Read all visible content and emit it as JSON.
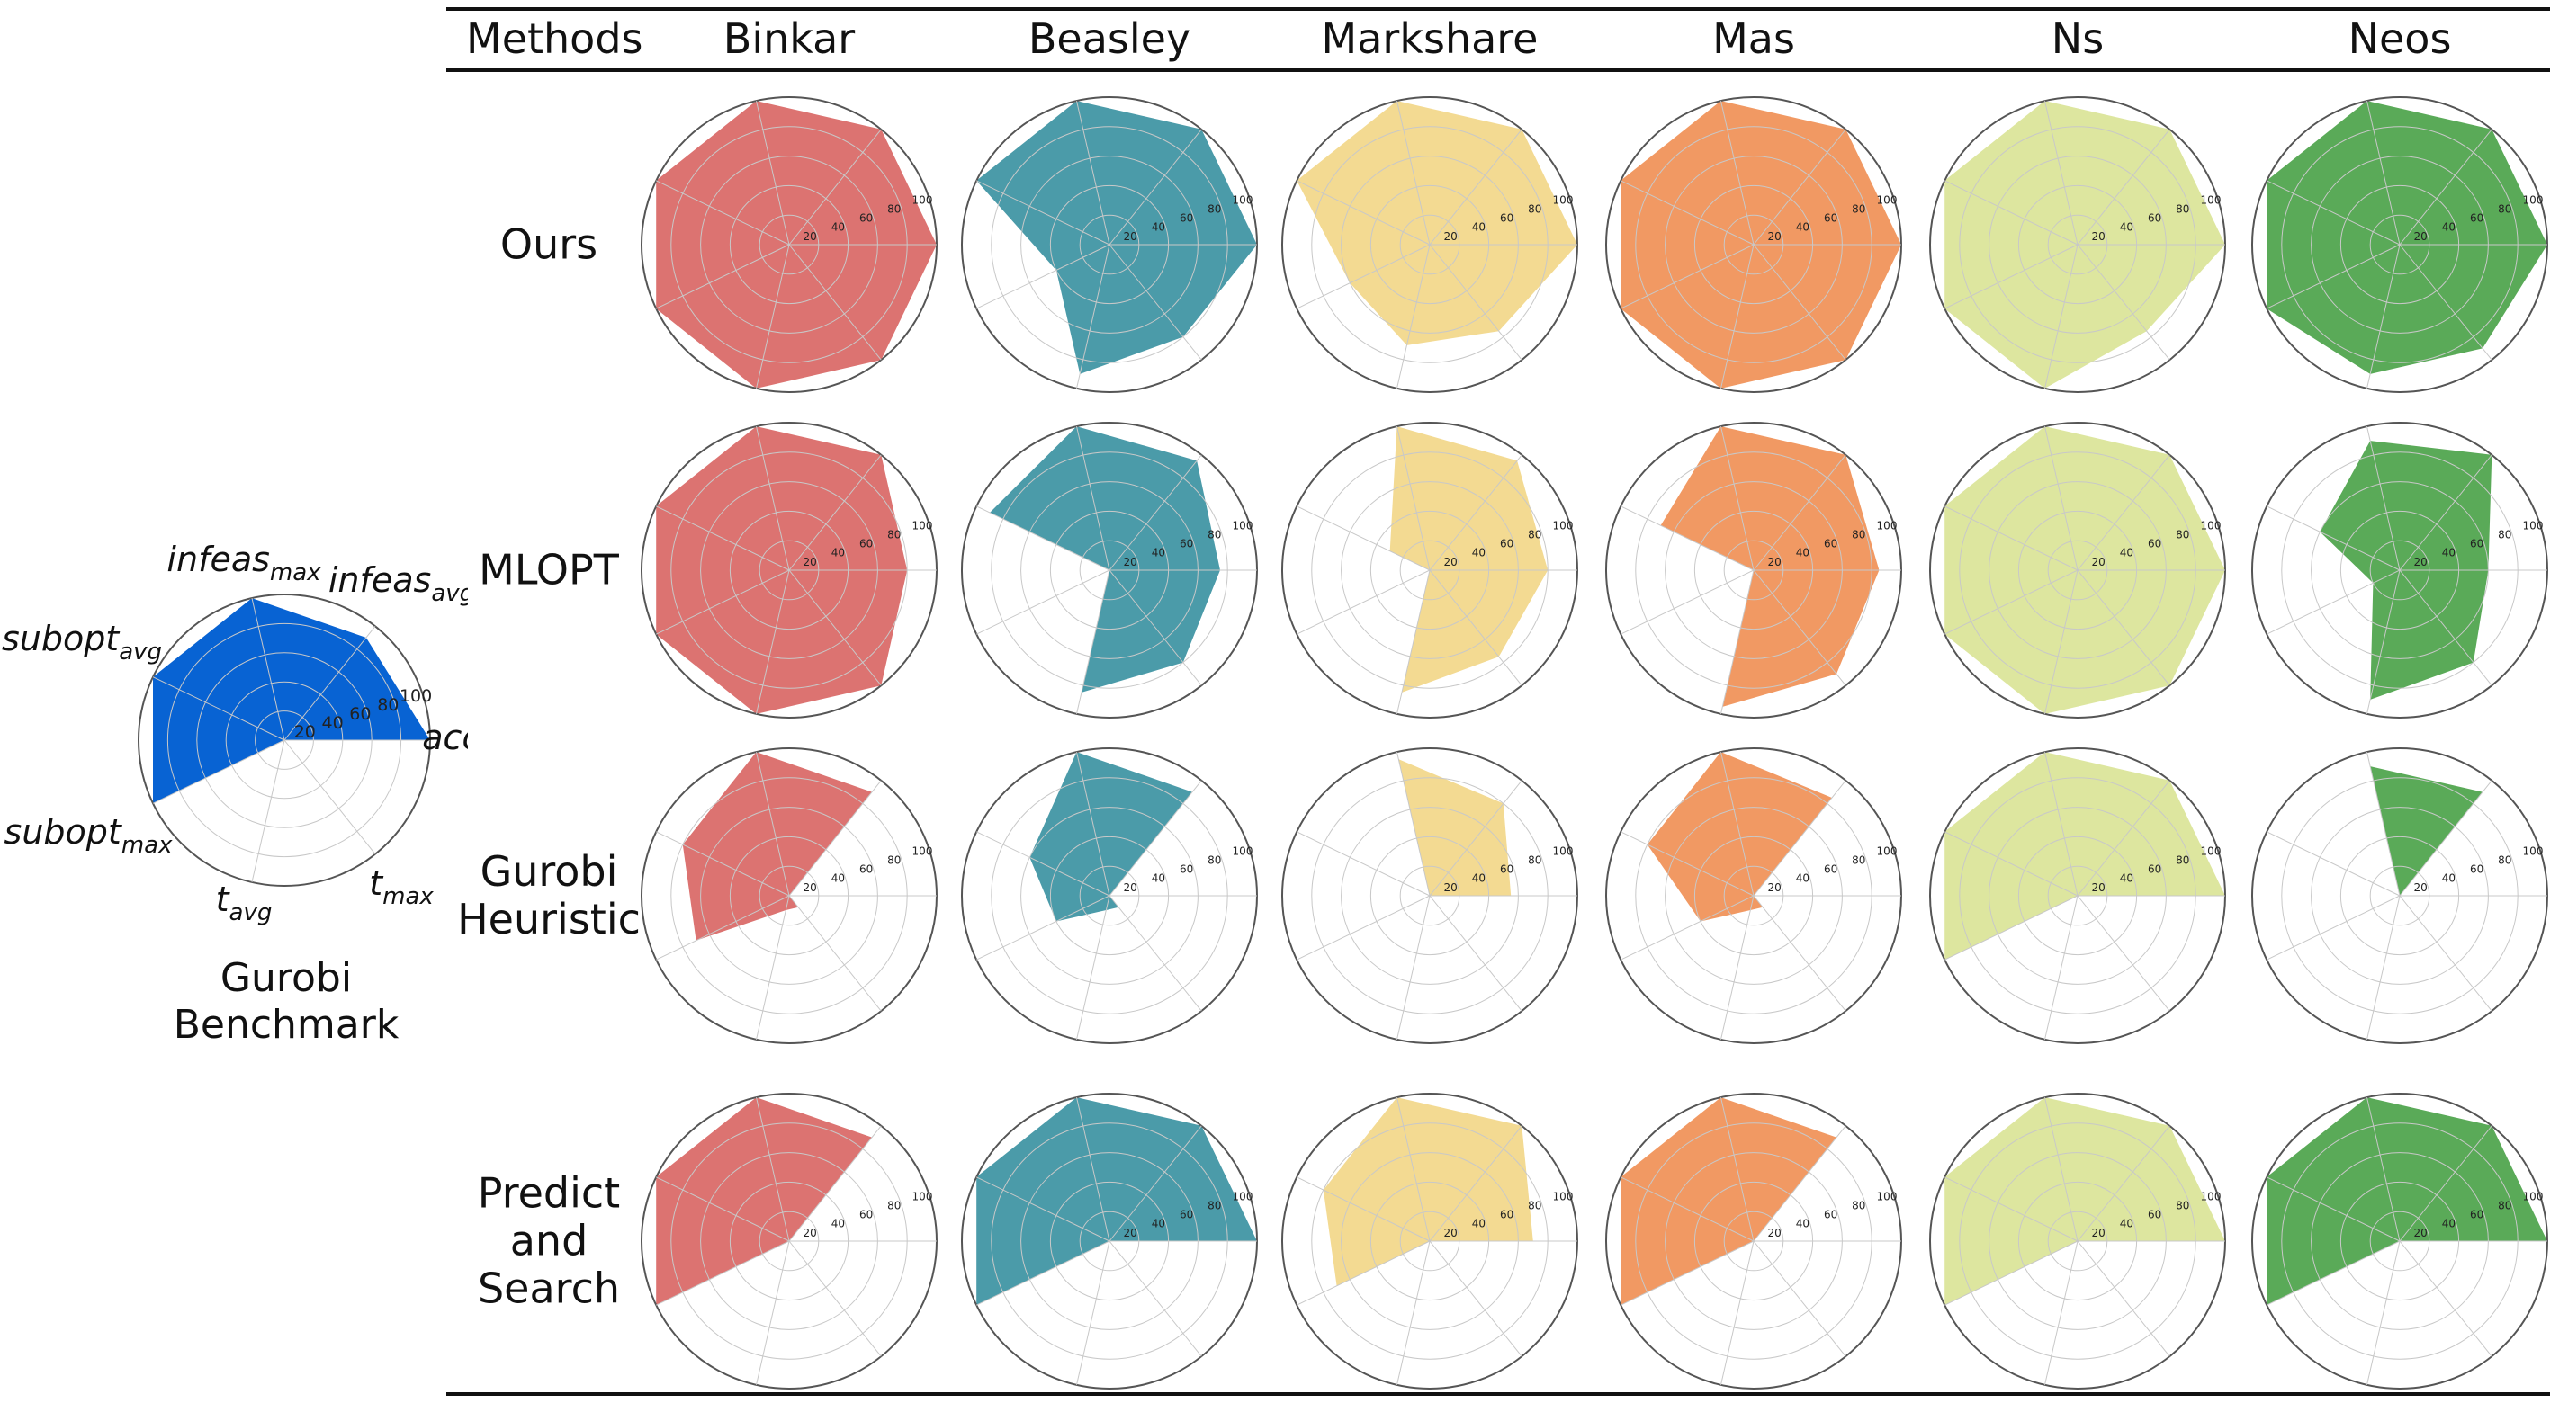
{
  "header": {
    "methods_label": "Methods",
    "datasets": [
      "Binkar",
      "Beasley",
      "Markshare",
      "Mas",
      "Ns",
      "Neos"
    ]
  },
  "rows": [
    {
      "label_lines": [
        "Ours"
      ]
    },
    {
      "label_lines": [
        "MLOPT"
      ]
    },
    {
      "label_lines": [
        "Gurobi",
        "Heuristic"
      ]
    },
    {
      "label_lines": [
        "Predict",
        "and",
        "Search"
      ]
    }
  ],
  "benchmark": {
    "title_lines": [
      "Gurobi",
      "Benchmark"
    ],
    "color": "#0863d3",
    "values": [
      100,
      90,
      100,
      100,
      100,
      0,
      0
    ],
    "axis_labels": [
      {
        "base": "accuracy",
        "sub": ""
      },
      {
        "base": "infeas",
        "sub": "avg"
      },
      {
        "base": "infeas",
        "sub": "max"
      },
      {
        "base": "subopt",
        "sub": "avg"
      },
      {
        "base": "subopt",
        "sub": "max"
      },
      {
        "base": "t",
        "sub": "avg"
      },
      {
        "base": "t",
        "sub": "max"
      }
    ]
  },
  "chart_data": {
    "type": "radar",
    "title": "",
    "axes": [
      "accuracy",
      "infeas_avg",
      "infeas_max",
      "subopt_avg",
      "subopt_max",
      "t_avg",
      "t_max"
    ],
    "rlim": [
      0,
      100
    ],
    "ticks": [
      "20",
      "40",
      "60",
      "80",
      "100"
    ],
    "series_colors": {
      "Binkar": "#dc7371",
      "Beasley": "#4b9ba9",
      "Markshare": "#f3da92",
      "Mas": "#f19963",
      "Ns": "#dde69f",
      "Neos": "#5aaa58"
    },
    "series": [
      {
        "method": "Ours",
        "dataset": "Binkar",
        "values": [
          100,
          100,
          100,
          100,
          100,
          100,
          100
        ]
      },
      {
        "method": "Ours",
        "dataset": "Beasley",
        "values": [
          100,
          100,
          100,
          100,
          40,
          90,
          80
        ]
      },
      {
        "method": "Ours",
        "dataset": "Markshare",
        "values": [
          100,
          100,
          100,
          100,
          60,
          70,
          75
        ]
      },
      {
        "method": "Ours",
        "dataset": "Mas",
        "values": [
          100,
          100,
          100,
          100,
          100,
          100,
          100
        ]
      },
      {
        "method": "Ours",
        "dataset": "Ns",
        "values": [
          100,
          100,
          100,
          100,
          100,
          100,
          75
        ]
      },
      {
        "method": "Ours",
        "dataset": "Neos",
        "values": [
          100,
          100,
          100,
          100,
          100,
          90,
          90
        ]
      },
      {
        "method": "MLOPT",
        "dataset": "Binkar",
        "values": [
          80,
          100,
          100,
          100,
          100,
          100,
          100
        ]
      },
      {
        "method": "MLOPT",
        "dataset": "Beasley",
        "values": [
          75,
          95,
          100,
          90,
          0,
          85,
          80
        ]
      },
      {
        "method": "MLOPT",
        "dataset": "Markshare",
        "values": [
          80,
          95,
          100,
          30,
          0,
          85,
          75
        ]
      },
      {
        "method": "MLOPT",
        "dataset": "Mas",
        "values": [
          85,
          100,
          100,
          70,
          0,
          95,
          90
        ]
      },
      {
        "method": "MLOPT",
        "dataset": "Ns",
        "values": [
          100,
          100,
          100,
          100,
          100,
          100,
          100
        ]
      },
      {
        "method": "MLOPT",
        "dataset": "Neos",
        "values": [
          60,
          100,
          90,
          60,
          20,
          90,
          80
        ]
      },
      {
        "method": "Gurobi Heuristic",
        "dataset": "Binkar",
        "values": [
          0,
          90,
          100,
          80,
          70,
          10,
          10
        ]
      },
      {
        "method": "Gurobi Heuristic",
        "dataset": "Beasley",
        "values": [
          0,
          90,
          100,
          60,
          40,
          10,
          10
        ]
      },
      {
        "method": "Gurobi Heuristic",
        "dataset": "Markshare",
        "values": [
          55,
          80,
          95,
          0,
          0,
          0,
          0
        ]
      },
      {
        "method": "Gurobi Heuristic",
        "dataset": "Mas",
        "values": [
          0,
          85,
          100,
          80,
          40,
          10,
          10
        ]
      },
      {
        "method": "Gurobi Heuristic",
        "dataset": "Ns",
        "values": [
          100,
          100,
          100,
          100,
          100,
          0,
          0
        ]
      },
      {
        "method": "Gurobi Heuristic",
        "dataset": "Neos",
        "values": [
          0,
          90,
          90,
          0,
          0,
          0,
          0
        ]
      },
      {
        "method": "Predict and Search",
        "dataset": "Binkar",
        "values": [
          0,
          90,
          100,
          100,
          100,
          0,
          0
        ]
      },
      {
        "method": "Predict and Search",
        "dataset": "Beasley",
        "values": [
          100,
          100,
          100,
          100,
          100,
          0,
          0
        ]
      },
      {
        "method": "Predict and Search",
        "dataset": "Markshare",
        "values": [
          70,
          100,
          100,
          80,
          70,
          0,
          0
        ]
      },
      {
        "method": "Predict and Search",
        "dataset": "Mas",
        "values": [
          0,
          90,
          100,
          100,
          100,
          0,
          0
        ]
      },
      {
        "method": "Predict and Search",
        "dataset": "Ns",
        "values": [
          100,
          100,
          100,
          100,
          100,
          0,
          0
        ]
      },
      {
        "method": "Predict and Search",
        "dataset": "Neos",
        "values": [
          100,
          100,
          100,
          100,
          100,
          0,
          0
        ]
      }
    ]
  }
}
